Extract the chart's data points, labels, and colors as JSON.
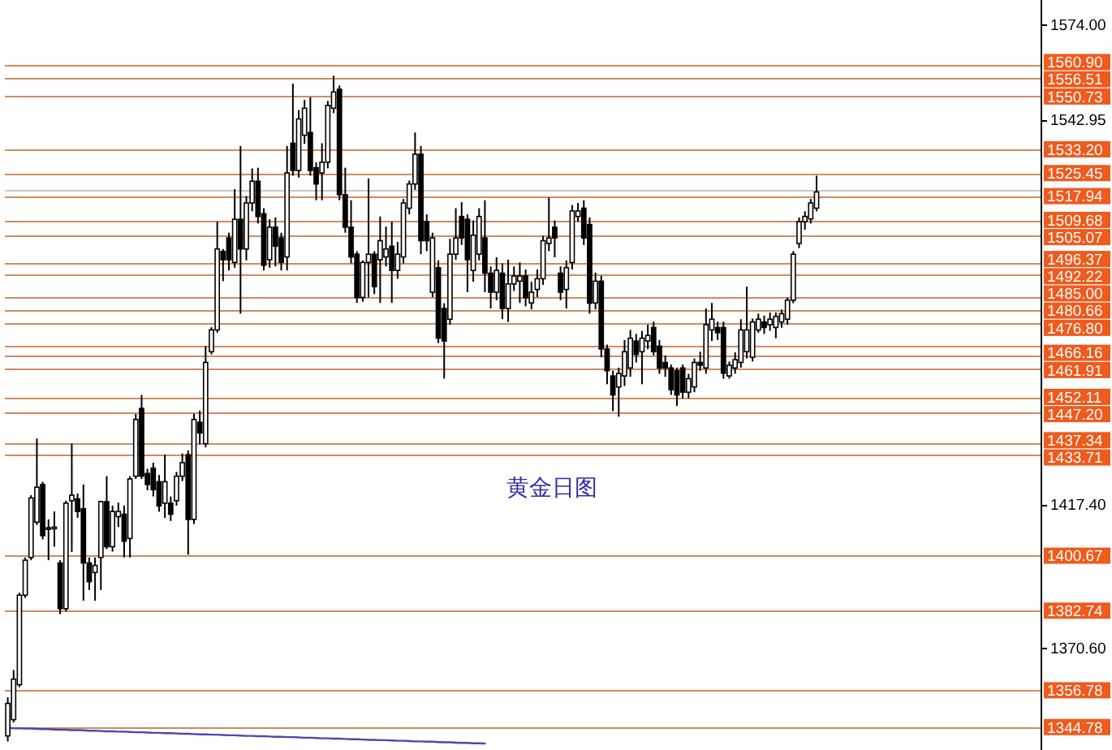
{
  "chart_data": {
    "type": "candlestick",
    "title": "黄金日图",
    "categories": [
      null,
      null,
      null,
      null,
      null,
      null,
      null,
      null,
      null,
      null,
      null,
      null,
      null,
      null,
      null,
      null,
      null,
      null,
      null,
      null,
      null,
      null,
      null,
      null,
      null,
      null,
      null,
      null,
      null,
      null,
      null,
      null,
      null,
      null,
      null,
      null,
      null,
      null,
      null,
      null,
      null,
      null,
      null,
      null,
      null,
      null,
      null,
      null,
      null,
      null,
      null,
      null,
      null,
      null,
      null,
      null,
      null,
      null,
      null,
      null,
      null,
      null,
      null,
      null,
      null,
      null,
      null,
      null,
      null,
      null,
      null,
      null,
      null,
      null,
      null,
      null,
      null,
      null,
      null,
      null,
      null,
      null,
      null,
      null,
      null,
      null,
      null,
      null,
      null,
      null,
      null,
      null,
      null,
      null,
      null,
      null,
      null,
      null,
      null,
      null,
      null,
      null,
      null,
      null,
      null,
      null,
      null,
      null,
      null,
      null,
      null,
      null,
      null,
      null,
      null,
      null,
      null,
      null,
      null,
      null,
      null,
      null,
      null,
      null,
      null,
      null,
      null,
      null,
      null,
      null,
      null,
      null,
      null,
      null,
      null,
      null,
      null,
      null,
      null,
      null,
      null,
      null,
      null,
      null,
      null,
      null,
      null,
      null,
      null,
      null,
      null,
      null,
      null,
      null,
      null,
      null,
      null,
      null,
      null,
      null,
      null,
      null,
      null,
      null,
      null,
      null,
      null,
      null,
      null,
      null,
      null,
      null,
      null,
      null,
      null,
      null,
      null,
      null
    ],
    "ohlc": [
      [
        1341.9,
        1354.5,
        1340.1,
        1352.5
      ],
      [
        1347.2,
        1363.4,
        1346.3,
        1360.4
      ],
      [
        1358.6,
        1388.6,
        1357.8,
        1387.8
      ],
      [
        1387.8,
        1400.1,
        1386.9,
        1399.2
      ],
      [
        1400.1,
        1420.4,
        1399.2,
        1419.5
      ],
      [
        1411.6,
        1438.9,
        1410.7,
        1423.0
      ],
      [
        1423.9,
        1424.8,
        1406.0,
        1407.2
      ],
      [
        1409.8,
        1412.5,
        1399.2,
        1409.5
      ],
      [
        1409.8,
        1415.1,
        1403.6,
        1410.0
      ],
      [
        1398.3,
        1399.2,
        1381.6,
        1383.4
      ],
      [
        1383.4,
        1418.6,
        1382.5,
        1417.8
      ],
      [
        1418.6,
        1437.2,
        1401.9,
        1420.4
      ],
      [
        1419.2,
        1421.0,
        1413.0,
        1415.1
      ],
      [
        1416.0,
        1423.9,
        1386.0,
        1398.3
      ],
      [
        1398.3,
        1400.1,
        1389.5,
        1392.2
      ],
      [
        1395.2,
        1400.1,
        1386.0,
        1397.5
      ],
      [
        1400.1,
        1418.6,
        1389.5,
        1418.3
      ],
      [
        1418.3,
        1426.6,
        1402.8,
        1403.6
      ],
      [
        1403.6,
        1417.0,
        1402.0,
        1415.1
      ],
      [
        1413.4,
        1418.0,
        1410.0,
        1415.1
      ],
      [
        1414.2,
        1417.0,
        1400.1,
        1405.4
      ],
      [
        1406.3,
        1426.6,
        1400.1,
        1425.7
      ],
      [
        1426.6,
        1446.9,
        1425.7,
        1445.1
      ],
      [
        1448.7,
        1453.1,
        1425.7,
        1426.6
      ],
      [
        1427.5,
        1429.0,
        1422.0,
        1423.9
      ],
      [
        1429.2,
        1431.0,
        1420.0,
        1422.2
      ],
      [
        1424.8,
        1427.0,
        1415.0,
        1416.9
      ],
      [
        1417.8,
        1433.6,
        1413.0,
        1424.8
      ],
      [
        1417.8,
        1420.0,
        1412.0,
        1414.2
      ],
      [
        1418.6,
        1428.0,
        1417.0,
        1426.6
      ],
      [
        1426.6,
        1434.0,
        1425.0,
        1431.0
      ],
      [
        1433.6,
        1435.0,
        1401.0,
        1412.5
      ],
      [
        1412.5,
        1447.0,
        1411.0,
        1445.1
      ],
      [
        1444.2,
        1448.0,
        1437.0,
        1440.7
      ],
      [
        1437.2,
        1469.0,
        1436.0,
        1463.7
      ],
      [
        1467.2,
        1475.2,
        1466.3,
        1474.3
      ],
      [
        1474.3,
        1509.6,
        1473.4,
        1500.7
      ],
      [
        1499.9,
        1500.7,
        1490.2,
        1497.2
      ],
      [
        1504.3,
        1506.0,
        1493.7,
        1497.2
      ],
      [
        1496.3,
        1520.2,
        1494.6,
        1510.4
      ],
      [
        1510.4,
        1534.3,
        1479.6,
        1500.7
      ],
      [
        1500.7,
        1518.0,
        1497.0,
        1515.7
      ],
      [
        1515.7,
        1527.0,
        1513.0,
        1522.8
      ],
      [
        1522.8,
        1527.2,
        1509.0,
        1511.3
      ],
      [
        1512.2,
        1514.0,
        1493.7,
        1495.4
      ],
      [
        1497.2,
        1510.4,
        1494.6,
        1507.8
      ],
      [
        1507.8,
        1511.0,
        1495.0,
        1501.6
      ],
      [
        1504.3,
        1506.0,
        1493.7,
        1496.3
      ],
      [
        1498.1,
        1534.3,
        1493.7,
        1525.5
      ],
      [
        1535.2,
        1554.6,
        1524.6,
        1526.3
      ],
      [
        1526.3,
        1546.0,
        1524.0,
        1543.1
      ],
      [
        1537.8,
        1549.3,
        1535.0,
        1546.6
      ],
      [
        1538.7,
        1550.2,
        1524.6,
        1526.3
      ],
      [
        1527.2,
        1529.0,
        1516.6,
        1521.9
      ],
      [
        1525.5,
        1535.2,
        1516.6,
        1529.0
      ],
      [
        1529.0,
        1549.0,
        1527.0,
        1547.5
      ],
      [
        1546.6,
        1557.2,
        1545.0,
        1551.9
      ],
      [
        1552.8,
        1554.0,
        1516.6,
        1518.4
      ],
      [
        1518.4,
        1527.2,
        1506.0,
        1507.8
      ],
      [
        1507.8,
        1516.6,
        1496.0,
        1498.1
      ],
      [
        1499.0,
        1500.0,
        1483.1,
        1484.9
      ],
      [
        1484.9,
        1497.0,
        1483.5,
        1496.3
      ],
      [
        1496.3,
        1523.7,
        1484.9,
        1499.0
      ],
      [
        1499.0,
        1500.0,
        1486.0,
        1488.4
      ],
      [
        1497.2,
        1511.3,
        1483.1,
        1503.4
      ],
      [
        1498.1,
        1508.0,
        1495.0,
        1500.7
      ],
      [
        1501.6,
        1509.6,
        1483.1,
        1493.7
      ],
      [
        1493.7,
        1503.0,
        1491.0,
        1499.0
      ],
      [
        1498.1,
        1517.0,
        1496.0,
        1515.7
      ],
      [
        1514.0,
        1523.0,
        1512.0,
        1521.9
      ],
      [
        1521.9,
        1538.7,
        1520.0,
        1531.6
      ],
      [
        1531.6,
        1534.3,
        1499.0,
        1503.4
      ],
      [
        1509.6,
        1512.0,
        1500.0,
        1503.4
      ],
      [
        1486.6,
        1506.0,
        1485.0,
        1504.3
      ],
      [
        1494.6,
        1497.0,
        1470.0,
        1471.6
      ],
      [
        1481.3,
        1483.0,
        1458.4,
        1470.7
      ],
      [
        1477.8,
        1504.0,
        1476.0,
        1499.0
      ],
      [
        1499.0,
        1514.0,
        1497.2,
        1504.3
      ],
      [
        1511.3,
        1516.0,
        1502.0,
        1504.3
      ],
      [
        1510.4,
        1512.0,
        1486.6,
        1497.2
      ],
      [
        1493.7,
        1510.0,
        1490.0,
        1505.2
      ],
      [
        1499.0,
        1514.0,
        1497.0,
        1511.3
      ],
      [
        1504.3,
        1516.6,
        1486.6,
        1492.8
      ],
      [
        1492.8,
        1495.0,
        1481.3,
        1486.6
      ],
      [
        1486.6,
        1498.0,
        1484.0,
        1493.7
      ],
      [
        1492.8,
        1496.0,
        1477.8,
        1481.3
      ],
      [
        1481.3,
        1497.2,
        1476.9,
        1489.3
      ],
      [
        1489.3,
        1495.0,
        1487.0,
        1491.9
      ],
      [
        1490.2,
        1496.3,
        1483.1,
        1491.9
      ],
      [
        1491.9,
        1494.0,
        1482.0,
        1484.8
      ],
      [
        1483.1,
        1490.0,
        1481.0,
        1486.6
      ],
      [
        1487.5,
        1494.0,
        1485.0,
        1491.0
      ],
      [
        1491.0,
        1505.0,
        1489.0,
        1503.4
      ],
      [
        1502.5,
        1517.5,
        1500.0,
        1504.3
      ],
      [
        1507.8,
        1510.0,
        1498.0,
        1504.3
      ],
      [
        1492.8,
        1495.0,
        1484.0,
        1486.6
      ],
      [
        1487.5,
        1497.0,
        1481.3,
        1494.6
      ],
      [
        1496.3,
        1515.0,
        1494.0,
        1513.1
      ],
      [
        1511.3,
        1515.7,
        1509.6,
        1513.1
      ],
      [
        1514.0,
        1516.6,
        1502.0,
        1504.3
      ],
      [
        1508.7,
        1511.0,
        1479.6,
        1483.0
      ],
      [
        1483.1,
        1493.0,
        1481.0,
        1490.2
      ],
      [
        1490.2,
        1492.0,
        1465.4,
        1468.1
      ],
      [
        1468.1,
        1469.5,
        1456.6,
        1461.0
      ],
      [
        1459.3,
        1461.0,
        1447.8,
        1453.1
      ],
      [
        1455.7,
        1462.0,
        1446.0,
        1460.1
      ],
      [
        1459.3,
        1471.0,
        1456.0,
        1467.2
      ],
      [
        1461.9,
        1474.3,
        1459.0,
        1471.6
      ],
      [
        1470.7,
        1473.0,
        1463.7,
        1466.3
      ],
      [
        1467.2,
        1474.0,
        1456.6,
        1471.6
      ],
      [
        1470.7,
        1476.0,
        1468.0,
        1472.5
      ],
      [
        1475.1,
        1477.0,
        1466.0,
        1467.2
      ],
      [
        1469.0,
        1471.0,
        1460.0,
        1461.9
      ],
      [
        1463.7,
        1466.0,
        1459.0,
        1461.9
      ],
      [
        1461.9,
        1463.0,
        1453.1,
        1454.8
      ],
      [
        1461.0,
        1462.0,
        1449.5,
        1453.1
      ],
      [
        1461.9,
        1463.0,
        1452.0,
        1454.0
      ],
      [
        1454.0,
        1460.0,
        1452.0,
        1458.4
      ],
      [
        1455.7,
        1465.0,
        1454.0,
        1463.7
      ],
      [
        1463.7,
        1467.2,
        1461.0,
        1462.8
      ],
      [
        1461.9,
        1481.3,
        1460.0,
        1476.0
      ],
      [
        1474.3,
        1483.1,
        1470.7,
        1477.8
      ],
      [
        1475.1,
        1477.0,
        1471.0,
        1473.4
      ],
      [
        1475.1,
        1477.0,
        1458.4,
        1460.2
      ],
      [
        1459.3,
        1464.0,
        1458.4,
        1462.8
      ],
      [
        1461.9,
        1467.0,
        1460.0,
        1464.6
      ],
      [
        1463.7,
        1477.8,
        1462.0,
        1474.3
      ],
      [
        1467.2,
        1488.4,
        1465.0,
        1474.3
      ],
      [
        1465.4,
        1478.0,
        1464.0,
        1476.9
      ],
      [
        1474.3,
        1479.6,
        1473.4,
        1477.8
      ],
      [
        1476.9,
        1479.0,
        1473.0,
        1475.1
      ],
      [
        1476.0,
        1480.0,
        1474.0,
        1477.8
      ],
      [
        1475.1,
        1480.0,
        1471.6,
        1478.7
      ],
      [
        1476.9,
        1481.0,
        1475.0,
        1479.6
      ],
      [
        1477.8,
        1484.9,
        1476.0,
        1484.0
      ],
      [
        1484.0,
        1500.0,
        1483.0,
        1499.0
      ],
      [
        1502.5,
        1511.0,
        1501.0,
        1509.6
      ],
      [
        1509.6,
        1513.0,
        1507.0,
        1511.3
      ],
      [
        1510.5,
        1517.0,
        1509.0,
        1515.7
      ],
      [
        1514.0,
        1524.6,
        1513.0,
        1519.3
      ],
      null,
      null,
      null,
      null,
      null,
      null,
      null,
      null,
      null,
      null,
      null,
      null,
      null,
      null,
      null,
      null,
      null,
      null,
      null,
      null,
      null,
      null,
      null,
      null,
      null,
      null,
      null,
      null,
      null,
      null,
      null,
      null,
      null,
      null,
      null,
      null,
      null,
      null
    ],
    "series": [
      {
        "type": "line",
        "color": "#4a4aa8",
        "values": [
          1344.5,
          1344.4,
          1344.4,
          1344.3,
          1344.3,
          1344.2,
          1344.1,
          1344.1,
          1344.0,
          1343.9,
          1343.9,
          1343.8,
          1343.8,
          1343.7,
          1343.6,
          1343.6,
          1343.5,
          1343.4,
          1343.4,
          1343.3,
          1343.3,
          1343.2,
          1343.1,
          1343.1,
          1343.0,
          1342.9,
          1342.9,
          1342.8,
          1342.8,
          1342.7,
          1342.6,
          1342.6,
          1342.5,
          1342.4,
          1342.4,
          1342.3,
          1342.3,
          1342.2,
          1342.1,
          1342.1,
          1342.0,
          1341.9,
          1341.9,
          1341.8,
          1341.8,
          1341.7,
          1341.6,
          1341.6,
          1341.5,
          1341.5,
          1341.4,
          1341.3,
          1341.3,
          1341.2,
          1341.1,
          1341.1,
          1341.0,
          1341.0,
          1340.9,
          1340.8,
          1340.8,
          1340.7,
          1340.6,
          1340.6,
          1340.5,
          1340.5,
          1340.4,
          1340.3,
          1340.3,
          1340.2,
          1340.1,
          1340.1,
          1340.0,
          1340.0,
          1339.9,
          1339.8,
          1339.8,
          1339.7,
          1339.6,
          1339.6,
          1339.5,
          1339.5,
          1339.4,
          null,
          null,
          null,
          null,
          null,
          null,
          null,
          null,
          null,
          null,
          null,
          null,
          null,
          null,
          null,
          null,
          null,
          null,
          null,
          null,
          null,
          null,
          null,
          null,
          null,
          null,
          null,
          null,
          null,
          null,
          null,
          null,
          null,
          null,
          null,
          null,
          null,
          null,
          null,
          null,
          null,
          null,
          null,
          null,
          null,
          null,
          null,
          null,
          null,
          null,
          null,
          null,
          null,
          null,
          null,
          null,
          null,
          null,
          null,
          null,
          null,
          null,
          null,
          null,
          null,
          null,
          null,
          null,
          null,
          null,
          null,
          null,
          null,
          null,
          null,
          null,
          null,
          null,
          null,
          null,
          null,
          null,
          null,
          null,
          null,
          null,
          null,
          null,
          null,
          null,
          null,
          null,
          null,
          null,
          null
        ]
      }
    ],
    "ylim": [
      1337.3,
      1581.9
    ],
    "yticks": [
      {
        "value": 1574,
        "label": "1574.00"
      },
      1542.95,
      {
        "value": 1417.4,
        "label": "1417.40"
      },
      {
        "value": 1370.6,
        "label": "1370.60"
      }
    ],
    "tick_labels": "y",
    "ref_lines": [
      {
        "axis": "y",
        "value": 1560.9,
        "label": "1560.90",
        "color": "#d08c60"
      },
      {
        "axis": "y",
        "value": 1556.51,
        "label": "1556.51",
        "color": "#d08c60"
      },
      {
        "axis": "y",
        "value": 1550.73,
        "label": "1550.73",
        "color": "#d08c60"
      },
      {
        "axis": "y",
        "value": 1533.2,
        "label": "1533.20",
        "color": "#d08c60"
      },
      {
        "axis": "y",
        "value": 1525.45,
        "label": "1525.45",
        "color": "#d08c60"
      },
      {
        "axis": "y",
        "value": 1520.2,
        "color": "#c8c8c8"
      },
      {
        "axis": "y",
        "value": 1517.94,
        "label": "1517.94",
        "color": "#d08c60"
      },
      {
        "axis": "y",
        "value": 1509.68,
        "label": "1509.68",
        "color": "#d08c60"
      },
      {
        "axis": "y",
        "value": 1505.07,
        "label": "1505.07",
        "color": "#d08c60"
      },
      {
        "axis": "y",
        "value": 1496.37,
        "label": "1496.37",
        "color": "#d08c60"
      },
      {
        "axis": "y",
        "value": 1492.22,
        "label": "1492.22",
        "color": "#d08c60"
      },
      {
        "axis": "y",
        "value": 1485.0,
        "label": "1485.00",
        "color": "#d08c60"
      },
      {
        "axis": "y",
        "value": 1480.66,
        "label": "1480.66",
        "color": "#d08c60"
      },
      {
        "axis": "y",
        "value": 1476.8,
        "label": "1476.80",
        "color": "#d08c60"
      },
      {
        "axis": "y",
        "value": 1469.1,
        "color": "#d08c60"
      },
      {
        "axis": "y",
        "value": 1466.16,
        "label": "1466.16",
        "color": "#d08c60"
      },
      {
        "axis": "y",
        "value": 1461.91,
        "label": "1461.91",
        "color": "#d08c60"
      },
      {
        "axis": "y",
        "value": 1452.11,
        "label": "1452.11",
        "color": "#d08c60"
      },
      {
        "axis": "y",
        "value": 1447.2,
        "label": "1447.20",
        "color": "#d08c60"
      },
      {
        "axis": "y",
        "value": 1437.34,
        "label": "1437.34",
        "color": "#d08c60"
      },
      {
        "axis": "y",
        "value": 1433.71,
        "label": "1433.71",
        "color": "#d08c60"
      },
      {
        "axis": "y",
        "value": 1400.67,
        "label": "1400.67",
        "color": "#d08c60"
      },
      {
        "axis": "y",
        "value": 1382.74,
        "label": "1382.74",
        "color": "#d08c60"
      },
      {
        "axis": "y",
        "value": 1356.78,
        "label": "1356.78",
        "color": "#d08c60"
      },
      {
        "axis": "y",
        "value": 1344.78,
        "label": "1344.78",
        "color": "#d08c60"
      }
    ]
  }
}
